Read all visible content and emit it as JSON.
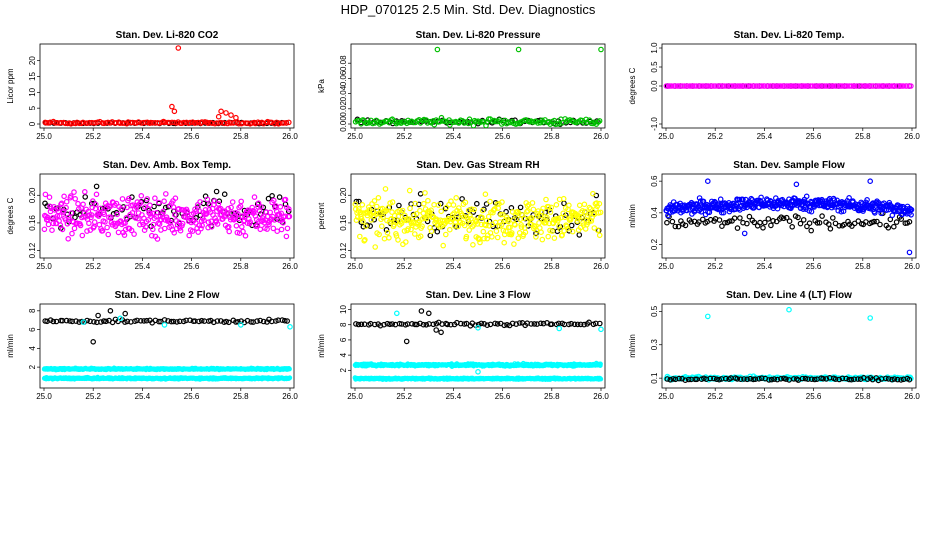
{
  "title": "HDP_070125  2.5 Min. Std. Dev. Diagnostics",
  "colors": {
    "black": "#000000",
    "red": "#ff0000",
    "green": "#00c000",
    "magenta": "#ff00ff",
    "yellow": "#ffff00",
    "blue": "#0000ff",
    "cyan": "#00ffff"
  },
  "chart_data": [
    {
      "type": "scatter",
      "title": "Stan. Dev. Li-820 CO2",
      "xlabel": "",
      "ylabel": "Licor ppm",
      "xlim": [
        25.0,
        26.0
      ],
      "ylim": [
        0,
        24
      ],
      "xticks": [
        "25.0",
        "25.2",
        "25.4",
        "25.6",
        "25.8",
        "26.0"
      ],
      "yticks": [
        "0",
        "5",
        "10",
        "15",
        "20"
      ],
      "series": [
        {
          "name": "black",
          "color": "black",
          "base": 0.3,
          "spread": 0.15,
          "n": 60
        },
        {
          "name": "red",
          "color": "red",
          "base": 0.4,
          "spread": 0.3,
          "n": 120,
          "outliers": [
            [
              25.546,
              24.0
            ],
            [
              25.52,
              5.5
            ],
            [
              25.53,
              4.0
            ],
            [
              25.72,
              4.0
            ],
            [
              25.74,
              3.5
            ],
            [
              25.76,
              2.8
            ],
            [
              25.78,
              2.0
            ],
            [
              25.71,
              2.3
            ]
          ]
        }
      ]
    },
    {
      "type": "scatter",
      "title": "Stan. Dev. Li-820 Pressure",
      "xlabel": "",
      "ylabel": "kPa",
      "xlim": [
        25.0,
        26.0
      ],
      "ylim": [
        0,
        0.1
      ],
      "xticks": [
        "25.0",
        "25.2",
        "25.4",
        "25.6",
        "25.8",
        "26.0"
      ],
      "yticks": [
        "0.00",
        "0.02",
        "0.04",
        "0.06",
        "0.08"
      ],
      "series": [
        {
          "name": "black",
          "color": "black",
          "base": 0.003,
          "spread": 0.003,
          "n": 60
        },
        {
          "name": "green",
          "color": "green",
          "base": 0.003,
          "spread": 0.004,
          "n": 140,
          "outliers": [
            [
              25.335,
              0.098
            ],
            [
              25.665,
              0.098
            ],
            [
              26.0,
              0.098
            ]
          ]
        }
      ]
    },
    {
      "type": "scatter",
      "title": "Stan. Dev. Li-820 Temp.",
      "xlabel": "",
      "ylabel": "degrees C",
      "xlim": [
        25.0,
        26.0
      ],
      "ylim": [
        -1.0,
        1.0
      ],
      "xticks": [
        "25.0",
        "25.2",
        "25.4",
        "25.6",
        "25.8",
        "26.0"
      ],
      "yticks": [
        "-1.0",
        "0.0",
        "0.5",
        "1.0"
      ],
      "series": [
        {
          "name": "black",
          "color": "black",
          "base": 0.0,
          "spread": 0.0,
          "n": 40
        },
        {
          "name": "magenta",
          "color": "magenta",
          "base": 0.0,
          "spread": 0.0,
          "n": 140
        }
      ]
    },
    {
      "type": "scatter",
      "title": "Stan. Dev. Amb. Box Temp.",
      "xlabel": "",
      "ylabel": "degrees C",
      "xlim": [
        25.0,
        26.0
      ],
      "ylim": [
        0.115,
        0.225
      ],
      "xticks": [
        "25.0",
        "25.2",
        "25.4",
        "25.6",
        "25.8",
        "26.0"
      ],
      "yticks": [
        "0.12",
        "0.16",
        "0.20"
      ],
      "series": [
        {
          "name": "black",
          "color": "black",
          "base": 0.18,
          "spread": 0.026,
          "n": 90
        },
        {
          "name": "magenta",
          "color": "magenta",
          "base": 0.17,
          "spread": 0.028,
          "n": 380
        }
      ]
    },
    {
      "type": "scatter",
      "title": "Stan. Dev. Gas Stream RH",
      "xlabel": "",
      "ylabel": "percent",
      "xlim": [
        25.0,
        26.0
      ],
      "ylim": [
        0.115,
        0.225
      ],
      "xticks": [
        "25.0",
        "25.2",
        "25.4",
        "25.6",
        "25.8",
        "26.0"
      ],
      "yticks": [
        "0.12",
        "0.16",
        "0.20"
      ],
      "series": [
        {
          "name": "black",
          "color": "black",
          "base": 0.17,
          "spread": 0.028,
          "n": 90
        },
        {
          "name": "yellow",
          "color": "yellow",
          "base": 0.165,
          "spread": 0.03,
          "n": 380
        }
      ]
    },
    {
      "type": "scatter",
      "title": "Stan. Dev. Sample Flow",
      "xlabel": "",
      "ylabel": "ml/min",
      "xlim": [
        25.0,
        26.0
      ],
      "ylim": [
        0.14,
        0.62
      ],
      "xticks": [
        "25.0",
        "25.2",
        "25.4",
        "25.6",
        "25.8",
        "26.0"
      ],
      "yticks": [
        "0.2",
        "0.4",
        "0.6"
      ],
      "series": [
        {
          "name": "black",
          "color": "black",
          "base": 0.34,
          "spread": 0.04,
          "n": 90
        },
        {
          "name": "blue",
          "color": "blue",
          "base": 0.42,
          "spread": 0.04,
          "n": 420,
          "trend": 0.04,
          "outliers": [
            [
              25.17,
              0.6
            ],
            [
              25.53,
              0.58
            ],
            [
              25.83,
              0.6
            ],
            [
              25.99,
              0.15
            ],
            [
              25.32,
              0.27
            ]
          ]
        }
      ]
    },
    {
      "type": "scatter",
      "title": "Stan. Dev. Line 2 Flow",
      "xlabel": "",
      "ylabel": "ml/min",
      "xlim": [
        25.0,
        26.0
      ],
      "ylim": [
        0.2,
        8.3
      ],
      "xticks": [
        "25.0",
        "25.2",
        "25.4",
        "25.6",
        "25.8",
        "26.0"
      ],
      "yticks": [
        "2",
        "4",
        "6",
        "8"
      ],
      "series": [
        {
          "name": "cyan-upper",
          "color": "cyan",
          "base": 1.8,
          "spread": 0.08,
          "n": 500,
          "size": 1.8
        },
        {
          "name": "cyan-lower",
          "color": "cyan",
          "base": 0.8,
          "spread": 0.08,
          "n": 500,
          "size": 1.8
        },
        {
          "name": "black",
          "color": "black",
          "base": 6.9,
          "spread": 0.15,
          "n": 80,
          "outliers": [
            [
              25.2,
              4.7
            ],
            [
              25.27,
              8.0
            ],
            [
              25.22,
              7.5
            ],
            [
              25.33,
              7.7
            ]
          ]
        },
        {
          "name": "cyan-outliers",
          "color": "cyan",
          "base": 0,
          "spread": 0,
          "n": 0,
          "outliers": [
            [
              25.49,
              6.5
            ],
            [
              26.0,
              6.3
            ],
            [
              25.16,
              6.8
            ],
            [
              25.8,
              6.5
            ],
            [
              25.31,
              7.2
            ]
          ]
        }
      ]
    },
    {
      "type": "scatter",
      "title": "Stan. Dev. Line 3 Flow",
      "xlabel": "",
      "ylabel": "ml/min",
      "xlim": [
        25.0,
        26.0
      ],
      "ylim": [
        0.2,
        10.2
      ],
      "xticks": [
        "25.0",
        "25.2",
        "25.4",
        "25.6",
        "25.8",
        "26.0"
      ],
      "yticks": [
        "2",
        "4",
        "6",
        "8",
        "10"
      ],
      "series": [
        {
          "name": "cyan-upper",
          "color": "cyan",
          "base": 2.7,
          "spread": 0.15,
          "n": 500,
          "size": 1.8
        },
        {
          "name": "cyan-lower",
          "color": "cyan",
          "base": 0.9,
          "spread": 0.1,
          "n": 500,
          "size": 1.8
        },
        {
          "name": "black",
          "color": "black",
          "base": 8.1,
          "spread": 0.2,
          "n": 80,
          "outliers": [
            [
              25.21,
              5.8
            ],
            [
              25.27,
              9.8
            ],
            [
              25.3,
              9.5
            ],
            [
              25.33,
              7.3
            ],
            [
              25.35,
              7.0
            ]
          ]
        },
        {
          "name": "cyan-outliers",
          "color": "cyan",
          "base": 0,
          "spread": 0,
          "n": 0,
          "outliers": [
            [
              25.17,
              9.5
            ],
            [
              25.5,
              7.6
            ],
            [
              25.5,
              1.8
            ],
            [
              25.83,
              7.5
            ],
            [
              26.0,
              7.4
            ]
          ]
        }
      ]
    },
    {
      "type": "scatter",
      "title": "Stan. Dev. Line 4 (LT) Flow",
      "xlabel": "",
      "ylabel": "ml/min",
      "xlim": [
        25.0,
        26.0
      ],
      "ylim": [
        0.065,
        0.52
      ],
      "xticks": [
        "25.0",
        "25.2",
        "25.4",
        "25.6",
        "25.8",
        "26.0"
      ],
      "yticks": [
        "0.1",
        "0.3",
        "0.5"
      ],
      "series": [
        {
          "name": "cyan",
          "color": "cyan",
          "base": 0.1,
          "spread": 0.008,
          "n": 220,
          "outliers": [
            [
              25.17,
              0.47
            ],
            [
              25.5,
              0.51
            ],
            [
              25.83,
              0.46
            ]
          ]
        },
        {
          "name": "black",
          "color": "black",
          "base": 0.095,
          "spread": 0.007,
          "n": 80
        }
      ]
    }
  ]
}
